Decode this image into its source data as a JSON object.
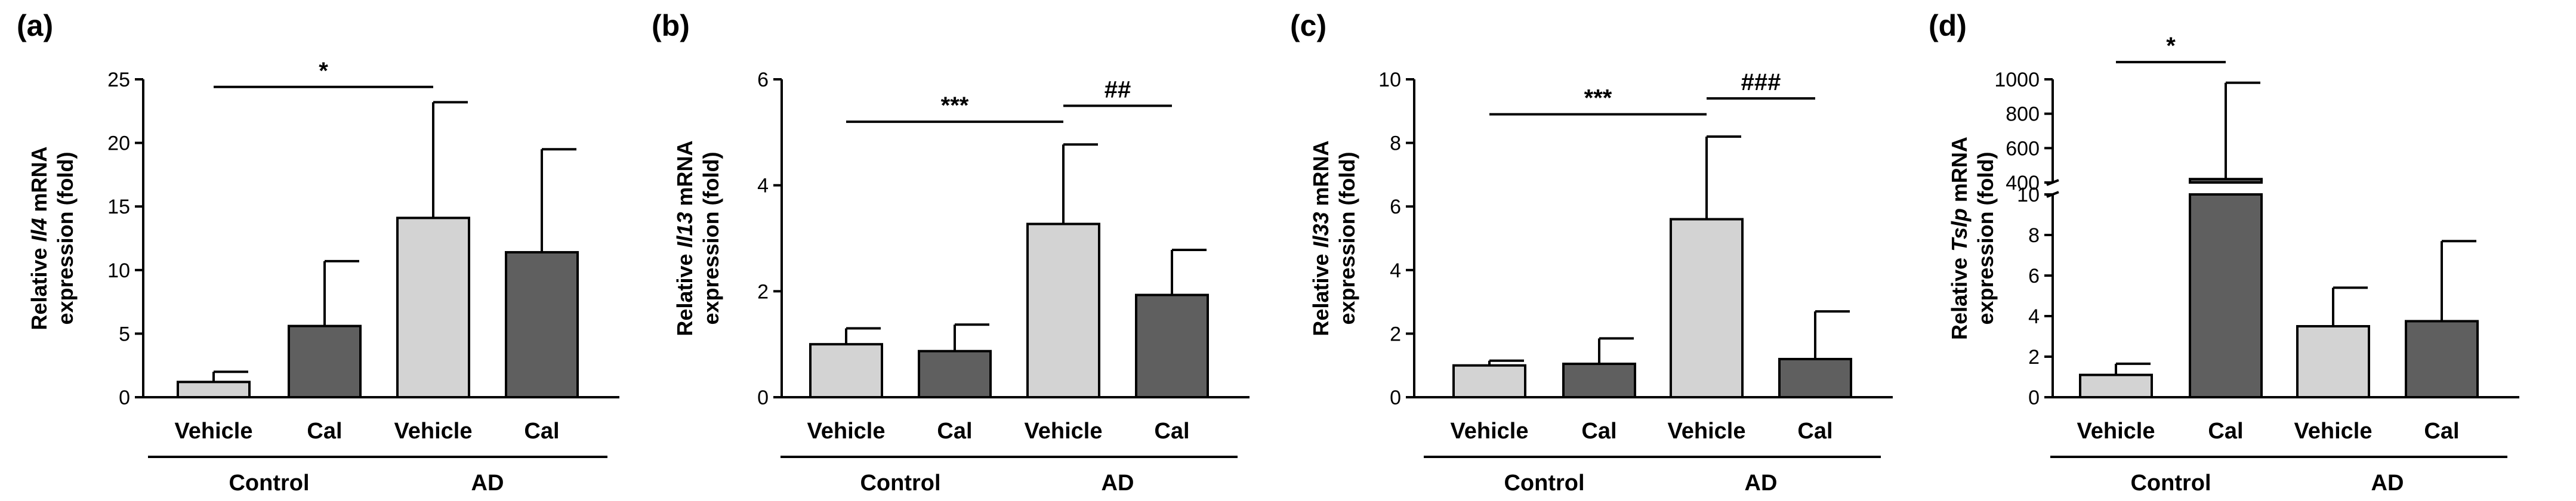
{
  "colors": {
    "vehicle": "#d3d3d3",
    "cal": "#5f5f5f",
    "stroke": "#000000",
    "background": "#ffffff"
  },
  "chart_data": [
    {
      "type": "bar",
      "panel": "(a)",
      "ylabel_pre": "Relative ",
      "ylabel_gene": "Il4",
      "ylabel_post": " mRNA",
      "ylabel_line2": "expression (fold)",
      "categories": [
        "Vehicle",
        "Cal",
        "Vehicle",
        "Cal"
      ],
      "groups": [
        "Control",
        "AD"
      ],
      "values": [
        1.2,
        5.6,
        14.1,
        11.4
      ],
      "errors": [
        0.8,
        5.1,
        9.1,
        8.1
      ],
      "ylim": [
        0,
        25
      ],
      "yticks": [
        0,
        5,
        10,
        15,
        20,
        25
      ],
      "significance": [
        {
          "from": 0,
          "to": 2,
          "label": "*",
          "y": 24.4
        }
      ]
    },
    {
      "type": "bar",
      "panel": "(b)",
      "ylabel_pre": "Relative ",
      "ylabel_gene": "Il13",
      "ylabel_post": " mRNA",
      "ylabel_line2": "expression (fold)",
      "categories": [
        "Vehicle",
        "Cal",
        "Vehicle",
        "Cal"
      ],
      "groups": [
        "Control",
        "AD"
      ],
      "values": [
        1.0,
        0.87,
        3.27,
        1.93
      ],
      "errors": [
        0.3,
        0.5,
        1.5,
        0.85
      ],
      "ylim": [
        0,
        6
      ],
      "yticks": [
        0,
        2,
        4,
        6
      ],
      "significance": [
        {
          "from": 0,
          "to": 2,
          "label": "***",
          "y": 5.2
        },
        {
          "from": 2,
          "to": 3,
          "label": "##",
          "y": 5.5
        }
      ]
    },
    {
      "type": "bar",
      "panel": "(c)",
      "ylabel_pre": "Relative ",
      "ylabel_gene": "Il33",
      "ylabel_post": " mRNA",
      "ylabel_line2": "expression (fold)",
      "categories": [
        "Vehicle",
        "Cal",
        "Vehicle",
        "Cal"
      ],
      "groups": [
        "Control",
        "AD"
      ],
      "values": [
        1.0,
        1.05,
        5.6,
        1.2
      ],
      "errors": [
        0.15,
        0.8,
        2.6,
        1.5
      ],
      "ylim": [
        0,
        10
      ],
      "yticks": [
        0,
        2,
        4,
        6,
        8,
        10
      ],
      "significance": [
        {
          "from": 0,
          "to": 2,
          "label": "***",
          "y": 8.9
        },
        {
          "from": 2,
          "to": 3,
          "label": "###",
          "y": 9.4
        }
      ]
    },
    {
      "type": "bar",
      "panel": "(d)",
      "ylabel_pre": "Relative ",
      "ylabel_gene": "Tslp",
      "ylabel_post": " mRNA",
      "ylabel_line2": "expression (fold)",
      "categories": [
        "Vehicle",
        "Cal",
        "Vehicle",
        "Cal"
      ],
      "groups": [
        "Control",
        "AD"
      ],
      "values": [
        1.1,
        420,
        3.5,
        3.75
      ],
      "errors": [
        0.55,
        560,
        1.9,
        3.95
      ],
      "axis_break": true,
      "ylim_lower": [
        0,
        10
      ],
      "ylim_upper": [
        400,
        1000
      ],
      "yticks_lower": [
        0,
        2,
        4,
        6,
        8,
        10
      ],
      "yticks_upper": [
        400,
        600,
        800,
        1000
      ],
      "significance": [
        {
          "from": 0,
          "to": 1,
          "label": "*",
          "y": 1100
        }
      ]
    }
  ]
}
